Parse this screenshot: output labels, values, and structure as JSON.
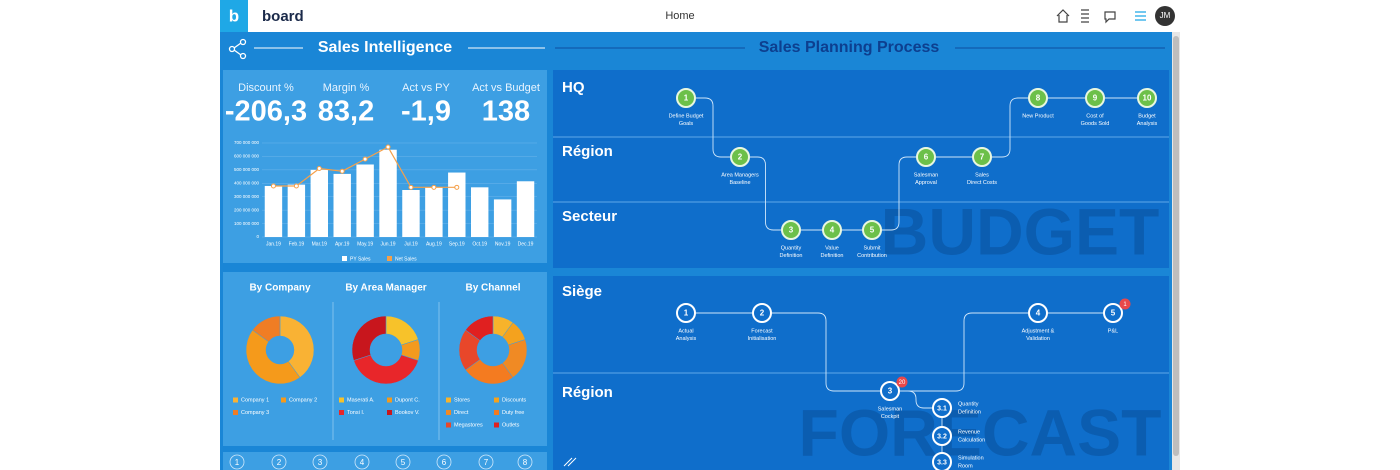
{
  "topbar": {
    "logo": "b",
    "brand": "board",
    "title": "Home",
    "user": "JM"
  },
  "left": {
    "title": "Sales Intelligence",
    "kpis": [
      {
        "label": "Discount %",
        "value": "-206,3"
      },
      {
        "label": "Margin %",
        "value": "83,2"
      },
      {
        "label": "Act vs PY",
        "value": "-1,9"
      },
      {
        "label": "Act vs Budget",
        "value": "138"
      }
    ],
    "pager": [
      "1",
      "2",
      "3",
      "4",
      "5",
      "6",
      "7",
      "8"
    ]
  },
  "chart_data": [
    {
      "type": "bar",
      "categories": [
        "Jan.19",
        "Feb.19",
        "Mar.19",
        "Apr.19",
        "May.19",
        "Jun.19",
        "Jul.19",
        "Aug.19",
        "Sep.19",
        "Oct.19",
        "Nov.19",
        "Dec.19"
      ],
      "series": [
        {
          "name": "PY Sales",
          "color": "#ffffff",
          "values": [
            380000000,
            390000000,
            500000000,
            470000000,
            540000000,
            650000000,
            350000000,
            370000000,
            480000000,
            370000000,
            280000000,
            415000000
          ]
        },
        {
          "name": "Net Sales",
          "type": "line",
          "color": "#f5a04a",
          "values": [
            380000000,
            380000000,
            510000000,
            490000000,
            580000000,
            670000000,
            370000000,
            370000000,
            370000000,
            null,
            null,
            null
          ]
        }
      ],
      "ylim": [
        0,
        700000000
      ],
      "yticks": [
        0,
        {
          "value": 100000000,
          "label": "100 000 000"
        },
        {
          "value": 200000000,
          "label": "200 000 000"
        },
        {
          "value": 300000000,
          "label": "300 000 000"
        },
        {
          "value": 400000000,
          "label": "400 000 000"
        },
        {
          "value": 500000000,
          "label": "500 000 000"
        },
        {
          "value": 600000000,
          "label": "600 000 000"
        },
        {
          "value": 700000000,
          "label": "700 000 000"
        }
      ]
    },
    {
      "type": "pie",
      "title": "By Company",
      "categories": [
        "Company 1",
        "Company 2",
        "Company 3"
      ],
      "values": [
        40,
        45,
        15
      ],
      "colors": [
        "#f9b234",
        "#f59a1b",
        "#f07d24"
      ]
    },
    {
      "type": "pie",
      "title": "By Area Manager",
      "categories": [
        "Maserati A.",
        "Dupont C.",
        "Tonsi I.",
        "Bookov V."
      ],
      "values": [
        20,
        10,
        40,
        30
      ],
      "colors": [
        "#f7c22a",
        "#f39a1e",
        "#e8262a",
        "#c8161d"
      ]
    },
    {
      "type": "pie",
      "title": "By Channel",
      "categories": [
        "Stores",
        "Discounts",
        "Direct",
        "Duty free",
        "Megastores",
        "Outlets"
      ],
      "values": [
        10,
        10,
        20,
        25,
        20,
        15
      ],
      "colors": [
        "#f7b32b",
        "#f4a21e",
        "#f08a24",
        "#f47b20",
        "#e8472a",
        "#e02020"
      ]
    }
  ],
  "right": {
    "title": "Sales Planning Process",
    "budget": {
      "watermark": "BUDGET",
      "lanes": [
        {
          "name": "HQ",
          "steps": [
            {
              "n": "1",
              "label": [
                "Define Budget",
                "Goals"
              ]
            },
            {
              "n": "8",
              "label": [
                "New Product"
              ]
            },
            {
              "n": "9",
              "label": [
                "Cost of",
                "Goods Sold"
              ]
            },
            {
              "n": "10",
              "label": [
                "Budget",
                "Analysis"
              ]
            }
          ]
        },
        {
          "name": "Région",
          "steps": [
            {
              "n": "2",
              "label": [
                "Area Managers",
                "Baseline"
              ]
            },
            {
              "n": "6",
              "label": [
                "Salesman",
                "Approval"
              ]
            },
            {
              "n": "7",
              "label": [
                "Sales",
                "Direct Costs"
              ]
            }
          ]
        },
        {
          "name": "Secteur",
          "steps": [
            {
              "n": "3",
              "label": [
                "Quantity",
                "Definition"
              ]
            },
            {
              "n": "4",
              "label": [
                "Value",
                "Definition"
              ]
            },
            {
              "n": "5",
              "label": [
                "Submit",
                "Contribution"
              ]
            }
          ]
        }
      ]
    },
    "forecast": {
      "watermark": "FORECAST",
      "lanes": [
        {
          "name": "Siège",
          "steps": [
            {
              "n": "1",
              "label": [
                "Actual",
                "Analysis"
              ]
            },
            {
              "n": "2",
              "label": [
                "Forecast",
                "Initialisation"
              ]
            },
            {
              "n": "4",
              "label": [
                "Adjustment &",
                "Validation"
              ]
            },
            {
              "n": "5",
              "label": [
                "P&L"
              ],
              "badge": "1"
            }
          ]
        },
        {
          "name": "Région",
          "steps": [
            {
              "n": "3",
              "label": [
                "Salesman",
                "Cockpit"
              ],
              "badge": "20"
            },
            {
              "n": "3.1",
              "label": [
                "Quantity",
                "Definition"
              ]
            },
            {
              "n": "3.2",
              "label": [
                "Revenue",
                "Calculation"
              ]
            },
            {
              "n": "3.3",
              "label": [
                "Simulation",
                "Room"
              ]
            }
          ]
        }
      ]
    }
  }
}
